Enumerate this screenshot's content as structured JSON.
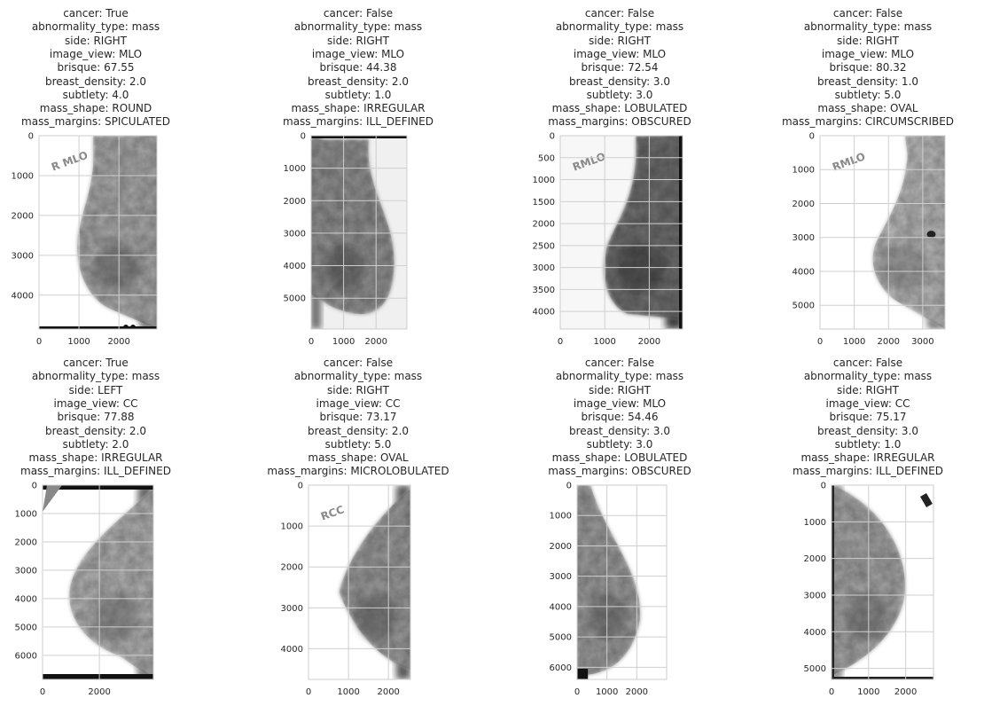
{
  "figure": {
    "panels": [
      {
        "title_lines": [
          "cancer: True",
          "abnormality_type: mass",
          "side: RIGHT",
          "image_view: MLO",
          "brisque: 67.55",
          "breast_density: 2.0",
          "subtlety: 4.0",
          "mass_shape: ROUND",
          "mass_margins: SPICULATED"
        ],
        "image": {
          "variant": "mlo_right",
          "marker": "R MLO",
          "marker_side": "top-left"
        }
      },
      {
        "title_lines": [
          "cancer: False",
          "abnormality_type: mass",
          "side: RIGHT",
          "image_view: MLO",
          "brisque: 44.38",
          "breast_density: 2.0",
          "subtlety: 1.0",
          "mass_shape: IRREGULAR",
          "mass_margins: ILL_DEFINED"
        ],
        "image": {
          "variant": "mlo_right_dark",
          "marker": "",
          "marker_side": ""
        }
      },
      {
        "title_lines": [
          "cancer: False",
          "abnormality_type: mass",
          "side: RIGHT",
          "image_view: MLO",
          "brisque: 72.54",
          "breast_density: 3.0",
          "subtlety: 3.0",
          "mass_shape: LOBULATED",
          "mass_margins: OBSCURED"
        ],
        "image": {
          "variant": "mlo_right_dense",
          "marker": "RMLO",
          "marker_side": "top-left"
        }
      },
      {
        "title_lines": [
          "cancer: False",
          "abnormality_type: mass",
          "side: RIGHT",
          "image_view: MLO",
          "brisque: 80.32",
          "breast_density: 1.0",
          "subtlety: 5.0",
          "mass_shape: OVAL",
          "mass_margins: CIRCUMSCRIBED"
        ],
        "image": {
          "variant": "mlo_right_fatty",
          "marker": "RMLO",
          "marker_side": "top-left"
        }
      },
      {
        "title_lines": [
          "cancer: True",
          "abnormality_type: mass",
          "side: LEFT",
          "image_view: CC",
          "brisque: 77.88",
          "breast_density: 2.0",
          "subtlety: 2.0",
          "mass_shape: IRREGULAR",
          "mass_margins: ILL_DEFINED"
        ],
        "image": {
          "variant": "cc_left",
          "marker": "",
          "marker_side": ""
        }
      },
      {
        "title_lines": [
          "cancer: False",
          "abnormality_type: mass",
          "side: RIGHT",
          "image_view: CC",
          "brisque: 73.17",
          "breast_density: 2.0",
          "subtlety: 5.0",
          "mass_shape: OVAL",
          "mass_margins: MICROLOBULATED"
        ],
        "image": {
          "variant": "cc_right",
          "marker": "RCC",
          "marker_side": "top-left"
        }
      },
      {
        "title_lines": [
          "cancer: False",
          "abnormality_type: mass",
          "side: RIGHT",
          "image_view: MLO",
          "brisque: 54.46",
          "breast_density: 3.0",
          "subtlety: 3.0",
          "mass_shape: LOBULATED",
          "mass_margins: OBSCURED"
        ],
        "image": {
          "variant": "mlo_left",
          "marker": "",
          "marker_side": ""
        }
      },
      {
        "title_lines": [
          "cancer: False",
          "abnormality_type: mass",
          "side: RIGHT",
          "image_view: CC",
          "brisque: 75.17",
          "breast_density: 3.0",
          "subtlety: 1.0",
          "mass_shape: IRREGULAR",
          "mass_margins: ILL_DEFINED"
        ],
        "image": {
          "variant": "cc_left2",
          "marker": "",
          "marker_side": ""
        }
      }
    ]
  },
  "chart_data": [
    {
      "type": "image",
      "xticks": [
        0,
        1000,
        2000
      ],
      "yticks": [
        0,
        1000,
        2000,
        3000,
        4000
      ],
      "xlim": [
        0,
        2950
      ],
      "ylim": [
        4850,
        0
      ],
      "grid": true
    },
    {
      "type": "image",
      "xticks": [
        0,
        1000,
        2000
      ],
      "yticks": [
        0,
        1000,
        2000,
        3000,
        4000,
        5000
      ],
      "xlim": [
        0,
        2950
      ],
      "ylim": [
        5950,
        0
      ],
      "grid": true
    },
    {
      "type": "image",
      "xticks": [
        0,
        1000,
        2000
      ],
      "yticks": [
        0,
        500,
        1000,
        1500,
        2000,
        2500,
        3000,
        3500,
        4000
      ],
      "xlim": [
        0,
        2750
      ],
      "ylim": [
        4400,
        0
      ],
      "grid": true
    },
    {
      "type": "image",
      "xticks": [
        0,
        1000,
        2000,
        3000
      ],
      "yticks": [
        0,
        1000,
        2000,
        3000,
        4000,
        5000
      ],
      "xlim": [
        0,
        3650
      ],
      "ylim": [
        5700,
        0
      ],
      "grid": true
    },
    {
      "type": "image",
      "xticks": [
        0,
        2000
      ],
      "yticks": [
        0,
        1000,
        2000,
        3000,
        4000,
        5000,
        6000
      ],
      "xlim": [
        0,
        3900
      ],
      "ylim": [
        6850,
        0
      ],
      "grid": true
    },
    {
      "type": "image",
      "xticks": [
        0,
        1000,
        2000
      ],
      "yticks": [
        0,
        1000,
        2000,
        3000,
        4000
      ],
      "xlim": [
        0,
        2550
      ],
      "ylim": [
        4750,
        0
      ],
      "grid": true
    },
    {
      "type": "image",
      "xticks": [
        0,
        1000,
        2000
      ],
      "yticks": [
        0,
        1000,
        2000,
        3000,
        4000,
        5000,
        6000
      ],
      "xlim": [
        0,
        3000
      ],
      "ylim": [
        6400,
        0
      ],
      "grid": true
    },
    {
      "type": "image",
      "xticks": [
        0,
        1000,
        2000
      ],
      "yticks": [
        0,
        1000,
        2000,
        3000,
        4000,
        5000
      ],
      "xlim": [
        0,
        2750
      ],
      "ylim": [
        5300,
        0
      ],
      "grid": true
    }
  ],
  "colors": {
    "grid": "#cfcfcf",
    "text": "#262626",
    "frame": "#cccccc"
  }
}
